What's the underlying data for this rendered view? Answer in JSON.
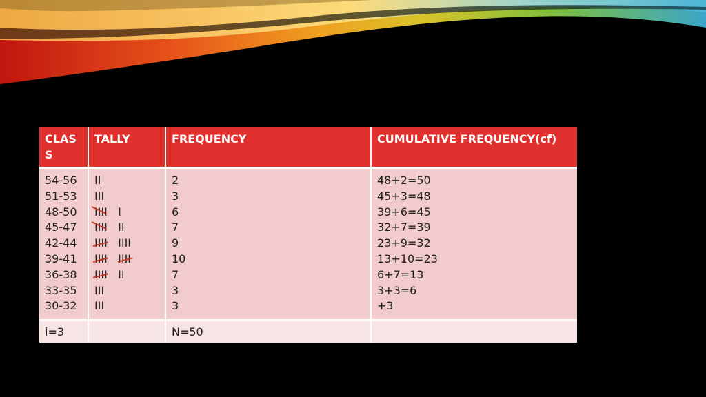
{
  "table": {
    "headers": {
      "class": "CLAS S",
      "tally": "TALLY",
      "frequency": "FREQUENCY",
      "cumulative": "CUMULATIVE FREQUENCY(cf)"
    },
    "rows": [
      {
        "class": "54-56",
        "tally": "II",
        "frequency": "2",
        "cf": "48+2=50"
      },
      {
        "class": "51-53",
        "tally": "III",
        "frequency": "3",
        "cf": "45+3=48"
      },
      {
        "class": "48-50",
        "tally": "IIII   I",
        "frequency": "6",
        "cf": "39+6=45"
      },
      {
        "class": "45-47",
        "tally": "IIII   II",
        "frequency": "7",
        "cf": "32+7=39"
      },
      {
        "class": "42-44",
        "tally": "IIII   IIII",
        "frequency": "9",
        "cf": "23+9=32"
      },
      {
        "class": "39-41",
        "tally": "IIII   IIII",
        "frequency": "10",
        "cf": "13+10=23"
      },
      {
        "class": "36-38",
        "tally": "IIII   II",
        "frequency": "7",
        "cf": "6+7=13"
      },
      {
        "class": "33-35",
        "tally": "III",
        "frequency": "3",
        "cf": "3+3=6"
      },
      {
        "class": "30-32",
        "tally": "III",
        "frequency": "3",
        "cf": "+3"
      }
    ],
    "summary": {
      "class": "i=3",
      "tally": "",
      "frequency": "N=50",
      "cumulative": ""
    }
  },
  "colors": {
    "header_bg": "#e0302d",
    "body_bg": "#f2cccc",
    "summary_bg": "#f7e4e4",
    "tally_slash": "#c0392b"
  }
}
